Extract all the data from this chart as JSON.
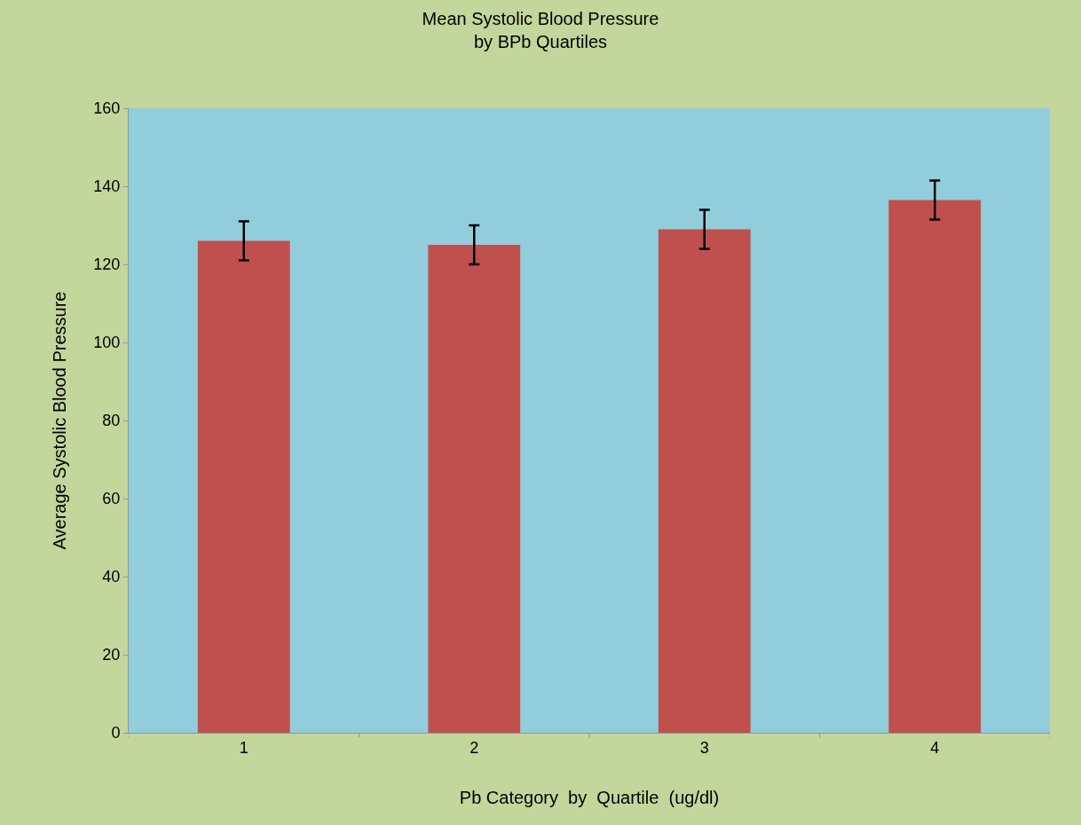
{
  "chart_data": {
    "type": "bar",
    "title": "Mean Systolic Blood Pressure\nby BPb Quartiles",
    "xlabel": "Pb Category  by  Quartile  (ug/dl)",
    "ylabel": "Average Systolic Blood Pressure",
    "categories": [
      "1",
      "2",
      "3",
      "4"
    ],
    "values": [
      126,
      125,
      129,
      136.5
    ],
    "errors": [
      5,
      5,
      5,
      5
    ],
    "color": "#c0504d",
    "ylim": [
      0,
      160
    ],
    "yticks": [
      0,
      20,
      40,
      60,
      80,
      100,
      120,
      140,
      160
    ],
    "grid": false,
    "legend": false
  }
}
